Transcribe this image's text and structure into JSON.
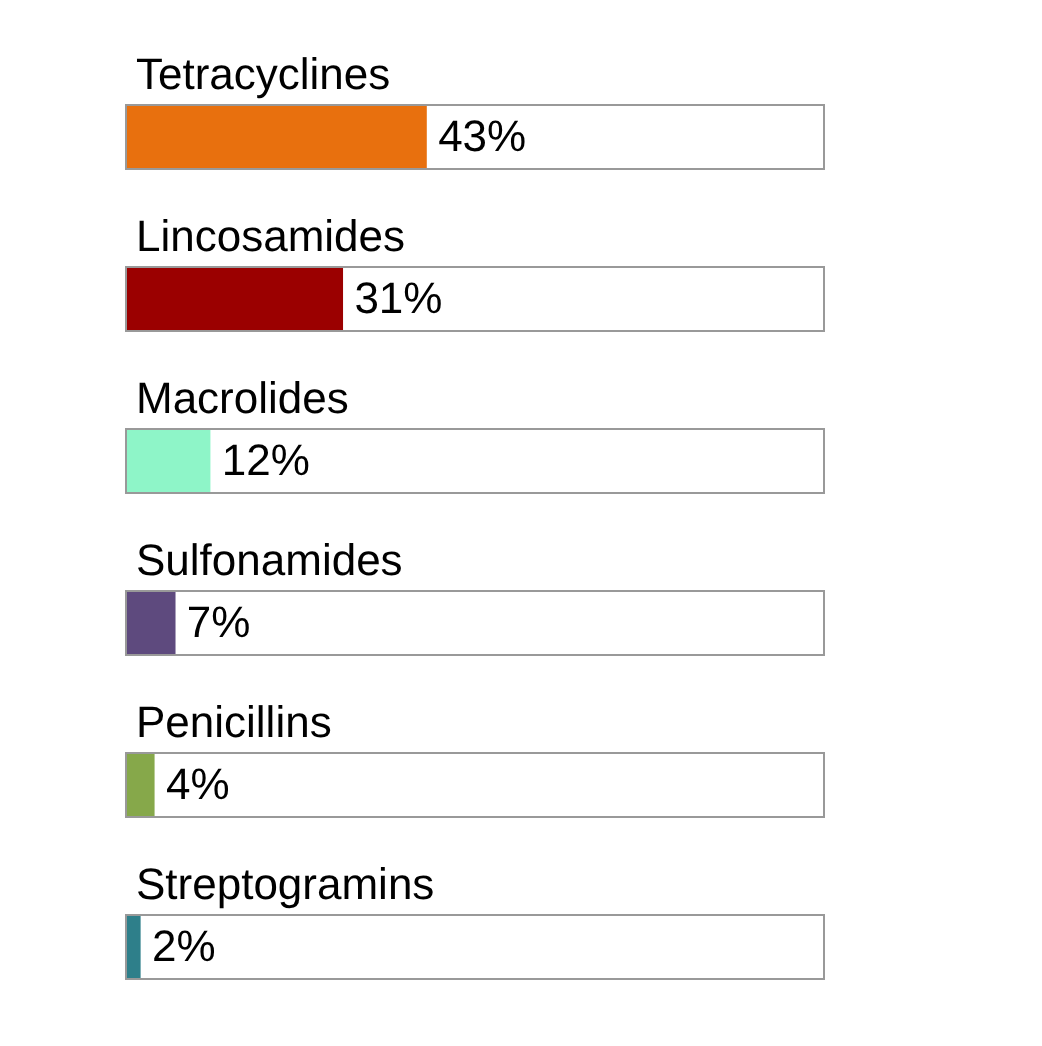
{
  "chart_data": {
    "type": "bar",
    "orientation": "horizontal",
    "categories": [
      "Tetracyclines",
      "Lincosamides",
      "Macrolides",
      "Sulfonamides",
      "Penicillins",
      "Streptogramins"
    ],
    "values": [
      43,
      31,
      12,
      7,
      4,
      2
    ],
    "colors": [
      "#e8700e",
      "#9b0000",
      "#8ef5c8",
      "#5e4a7e",
      "#86a84a",
      "#2e7f8a"
    ],
    "value_labels": [
      "43%",
      "31%",
      "12%",
      "7%",
      "4%",
      "2%"
    ],
    "xlim": [
      0,
      100
    ],
    "tick_labels": false,
    "legend": false
  }
}
